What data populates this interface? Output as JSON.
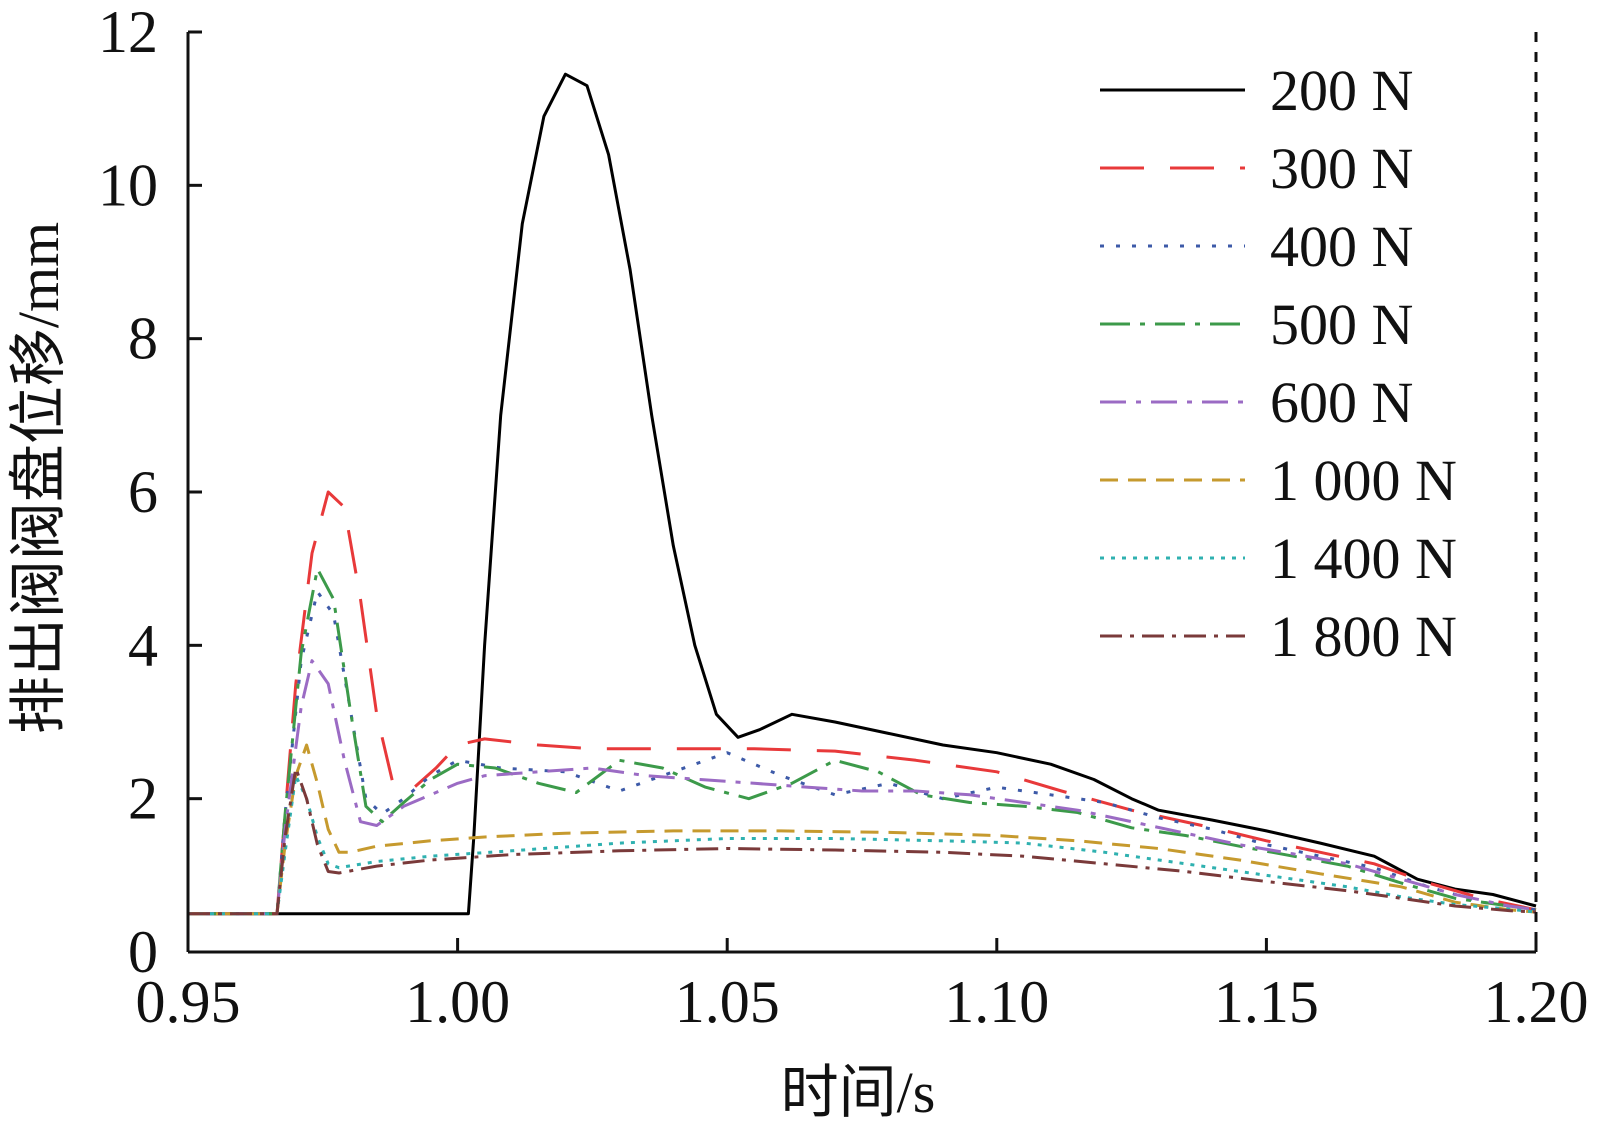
{
  "chart_data": {
    "type": "line",
    "xlabel": "时间/s",
    "ylabel": "排出阀阀盘位移/mm",
    "xlim": [
      0.95,
      1.2
    ],
    "ylim": [
      0,
      12
    ],
    "x_ticks": [
      0.95,
      1.0,
      1.05,
      1.1,
      1.15,
      1.2
    ],
    "x_tick_labels": [
      "0.95",
      "1.00",
      "1.05",
      "1.10",
      "1.15",
      "1.20"
    ],
    "y_ticks": [
      0,
      2,
      4,
      6,
      8,
      10,
      12
    ],
    "y_tick_labels": [
      "0",
      "2",
      "4",
      "6",
      "8",
      "10",
      "12"
    ],
    "legend_position": "top-right",
    "reference_line_x": 1.2,
    "series": [
      {
        "name": "200 N",
        "color": "#000000",
        "dash": "",
        "points": [
          [
            0.95,
            0.5
          ],
          [
            1.002,
            0.5
          ],
          [
            1.003,
            1.5
          ],
          [
            1.005,
            4
          ],
          [
            1.008,
            7
          ],
          [
            1.012,
            9.5
          ],
          [
            1.016,
            10.9
          ],
          [
            1.02,
            11.45
          ],
          [
            1.024,
            11.3
          ],
          [
            1.028,
            10.4
          ],
          [
            1.032,
            8.9
          ],
          [
            1.036,
            7
          ],
          [
            1.04,
            5.3
          ],
          [
            1.044,
            4
          ],
          [
            1.048,
            3.1
          ],
          [
            1.052,
            2.8
          ],
          [
            1.056,
            2.9
          ],
          [
            1.062,
            3.1
          ],
          [
            1.07,
            3.0
          ],
          [
            1.08,
            2.85
          ],
          [
            1.09,
            2.7
          ],
          [
            1.1,
            2.6
          ],
          [
            1.11,
            2.45
          ],
          [
            1.118,
            2.25
          ],
          [
            1.125,
            2.0
          ],
          [
            1.13,
            1.85
          ],
          [
            1.14,
            1.72
          ],
          [
            1.15,
            1.58
          ],
          [
            1.16,
            1.42
          ],
          [
            1.17,
            1.25
          ],
          [
            1.178,
            0.95
          ],
          [
            1.185,
            0.82
          ],
          [
            1.192,
            0.75
          ],
          [
            1.2,
            0.6
          ]
        ]
      },
      {
        "name": "300 N",
        "color": "#e8393a",
        "dash": "44,26",
        "points": [
          [
            0.95,
            0.5
          ],
          [
            0.9665,
            0.5
          ],
          [
            0.968,
            1.8
          ],
          [
            0.97,
            3.5
          ],
          [
            0.973,
            5.2
          ],
          [
            0.976,
            6.0
          ],
          [
            0.979,
            5.8
          ],
          [
            0.982,
            4.6
          ],
          [
            0.985,
            3.1
          ],
          [
            0.988,
            2.2
          ],
          [
            0.992,
            2.15
          ],
          [
            0.996,
            2.4
          ],
          [
            1.0,
            2.7
          ],
          [
            1.005,
            2.78
          ],
          [
            1.015,
            2.7
          ],
          [
            1.025,
            2.65
          ],
          [
            1.04,
            2.65
          ],
          [
            1.055,
            2.65
          ],
          [
            1.07,
            2.62
          ],
          [
            1.085,
            2.5
          ],
          [
            1.1,
            2.35
          ],
          [
            1.112,
            2.1
          ],
          [
            1.125,
            1.85
          ],
          [
            1.14,
            1.62
          ],
          [
            1.15,
            1.45
          ],
          [
            1.16,
            1.3
          ],
          [
            1.17,
            1.15
          ],
          [
            1.18,
            0.9
          ],
          [
            1.19,
            0.7
          ],
          [
            1.2,
            0.55
          ]
        ]
      },
      {
        "name": "400 N",
        "color": "#3d5aa8",
        "dash": "4,12",
        "points": [
          [
            0.95,
            0.5
          ],
          [
            0.9665,
            0.5
          ],
          [
            0.968,
            1.8
          ],
          [
            0.971,
            3.8
          ],
          [
            0.974,
            4.7
          ],
          [
            0.977,
            4.4
          ],
          [
            0.98,
            3.2
          ],
          [
            0.983,
            2.0
          ],
          [
            0.986,
            1.8
          ],
          [
            0.99,
            2.0
          ],
          [
            0.995,
            2.3
          ],
          [
            1.0,
            2.5
          ],
          [
            1.008,
            2.4
          ],
          [
            1.02,
            2.35
          ],
          [
            1.03,
            2.1
          ],
          [
            1.04,
            2.35
          ],
          [
            1.05,
            2.6
          ],
          [
            1.06,
            2.3
          ],
          [
            1.07,
            2.05
          ],
          [
            1.08,
            2.2
          ],
          [
            1.09,
            2.0
          ],
          [
            1.1,
            2.15
          ],
          [
            1.11,
            2.05
          ],
          [
            1.12,
            1.95
          ],
          [
            1.13,
            1.75
          ],
          [
            1.14,
            1.6
          ],
          [
            1.15,
            1.4
          ],
          [
            1.16,
            1.25
          ],
          [
            1.17,
            1.1
          ],
          [
            1.18,
            0.85
          ],
          [
            1.19,
            0.65
          ],
          [
            1.2,
            0.55
          ]
        ]
      },
      {
        "name": "500 N",
        "color": "#3c9a4a",
        "dash": "30,10,5,10",
        "points": [
          [
            0.95,
            0.5
          ],
          [
            0.9665,
            0.5
          ],
          [
            0.968,
            1.8
          ],
          [
            0.971,
            3.9
          ],
          [
            0.974,
            5.0
          ],
          [
            0.977,
            4.6
          ],
          [
            0.98,
            3.2
          ],
          [
            0.983,
            1.9
          ],
          [
            0.986,
            1.7
          ],
          [
            0.99,
            1.95
          ],
          [
            0.995,
            2.25
          ],
          [
            1.0,
            2.45
          ],
          [
            1.007,
            2.4
          ],
          [
            1.015,
            2.2
          ],
          [
            1.022,
            2.08
          ],
          [
            1.03,
            2.5
          ],
          [
            1.038,
            2.4
          ],
          [
            1.046,
            2.15
          ],
          [
            1.054,
            2.0
          ],
          [
            1.062,
            2.2
          ],
          [
            1.07,
            2.5
          ],
          [
            1.078,
            2.35
          ],
          [
            1.086,
            2.05
          ],
          [
            1.095,
            1.95
          ],
          [
            1.105,
            1.9
          ],
          [
            1.115,
            1.82
          ],
          [
            1.125,
            1.62
          ],
          [
            1.135,
            1.52
          ],
          [
            1.145,
            1.38
          ],
          [
            1.155,
            1.25
          ],
          [
            1.165,
            1.12
          ],
          [
            1.175,
            0.9
          ],
          [
            1.185,
            0.7
          ],
          [
            1.195,
            0.6
          ],
          [
            1.2,
            0.55
          ]
        ]
      },
      {
        "name": "600 N",
        "color": "#9b6bc4",
        "dash": "26,10,5,10",
        "points": [
          [
            0.95,
            0.5
          ],
          [
            0.9665,
            0.5
          ],
          [
            0.968,
            1.6
          ],
          [
            0.971,
            3.2
          ],
          [
            0.973,
            3.8
          ],
          [
            0.976,
            3.5
          ],
          [
            0.979,
            2.5
          ],
          [
            0.982,
            1.7
          ],
          [
            0.985,
            1.65
          ],
          [
            0.99,
            1.9
          ],
          [
            0.995,
            2.05
          ],
          [
            1.0,
            2.2
          ],
          [
            1.005,
            2.3
          ],
          [
            1.015,
            2.35
          ],
          [
            1.025,
            2.4
          ],
          [
            1.035,
            2.3
          ],
          [
            1.045,
            2.25
          ],
          [
            1.055,
            2.2
          ],
          [
            1.065,
            2.15
          ],
          [
            1.075,
            2.1
          ],
          [
            1.085,
            2.1
          ],
          [
            1.095,
            2.05
          ],
          [
            1.105,
            1.95
          ],
          [
            1.115,
            1.85
          ],
          [
            1.125,
            1.7
          ],
          [
            1.135,
            1.55
          ],
          [
            1.145,
            1.4
          ],
          [
            1.155,
            1.28
          ],
          [
            1.165,
            1.15
          ],
          [
            1.175,
            0.95
          ],
          [
            1.185,
            0.75
          ],
          [
            1.195,
            0.6
          ],
          [
            1.2,
            0.55
          ]
        ]
      },
      {
        "name": "1 000 N",
        "color": "#c69a2e",
        "dash": "18,10",
        "points": [
          [
            0.95,
            0.5
          ],
          [
            0.9665,
            0.5
          ],
          [
            0.968,
            1.4
          ],
          [
            0.97,
            2.3
          ],
          [
            0.972,
            2.7
          ],
          [
            0.974,
            2.2
          ],
          [
            0.976,
            1.6
          ],
          [
            0.978,
            1.3
          ],
          [
            0.98,
            1.3
          ],
          [
            0.985,
            1.38
          ],
          [
            0.995,
            1.45
          ],
          [
            1.005,
            1.5
          ],
          [
            1.02,
            1.55
          ],
          [
            1.04,
            1.58
          ],
          [
            1.06,
            1.58
          ],
          [
            1.08,
            1.56
          ],
          [
            1.1,
            1.52
          ],
          [
            1.115,
            1.45
          ],
          [
            1.13,
            1.35
          ],
          [
            1.145,
            1.2
          ],
          [
            1.16,
            1.02
          ],
          [
            1.175,
            0.85
          ],
          [
            1.185,
            0.65
          ],
          [
            1.195,
            0.55
          ],
          [
            1.2,
            0.52
          ]
        ]
      },
      {
        "name": "1 400 N",
        "color": "#2fb1b0",
        "dash": "4,7",
        "points": [
          [
            0.95,
            0.5
          ],
          [
            0.9665,
            0.5
          ],
          [
            0.968,
            1.3
          ],
          [
            0.97,
            2.3
          ],
          [
            0.972,
            2.0
          ],
          [
            0.974,
            1.5
          ],
          [
            0.976,
            1.15
          ],
          [
            0.978,
            1.1
          ],
          [
            0.985,
            1.18
          ],
          [
            0.995,
            1.25
          ],
          [
            1.01,
            1.32
          ],
          [
            1.03,
            1.42
          ],
          [
            1.05,
            1.48
          ],
          [
            1.07,
            1.48
          ],
          [
            1.09,
            1.45
          ],
          [
            1.105,
            1.42
          ],
          [
            1.12,
            1.3
          ],
          [
            1.135,
            1.15
          ],
          [
            1.15,
            1.0
          ],
          [
            1.165,
            0.85
          ],
          [
            1.175,
            0.72
          ],
          [
            1.185,
            0.62
          ],
          [
            1.195,
            0.56
          ],
          [
            1.2,
            0.52
          ]
        ]
      },
      {
        "name": "1 800 N",
        "color": "#7a3a3a",
        "dash": "22,8,4,8",
        "points": [
          [
            0.95,
            0.5
          ],
          [
            0.9665,
            0.5
          ],
          [
            0.968,
            1.5
          ],
          [
            0.97,
            2.4
          ],
          [
            0.972,
            2.0
          ],
          [
            0.974,
            1.4
          ],
          [
            0.976,
            1.05
          ],
          [
            0.978,
            1.03
          ],
          [
            0.985,
            1.12
          ],
          [
            0.995,
            1.2
          ],
          [
            1.01,
            1.27
          ],
          [
            1.03,
            1.32
          ],
          [
            1.05,
            1.35
          ],
          [
            1.07,
            1.33
          ],
          [
            1.09,
            1.3
          ],
          [
            1.105,
            1.25
          ],
          [
            1.12,
            1.15
          ],
          [
            1.135,
            1.05
          ],
          [
            1.15,
            0.92
          ],
          [
            1.165,
            0.8
          ],
          [
            1.175,
            0.7
          ],
          [
            1.185,
            0.6
          ],
          [
            1.195,
            0.54
          ],
          [
            1.2,
            0.52
          ]
        ]
      }
    ]
  }
}
